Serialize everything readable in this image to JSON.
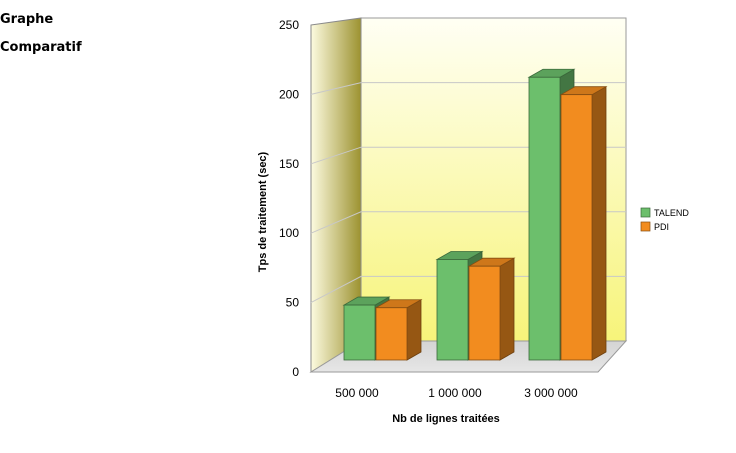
{
  "heading": {
    "line1": "Graphe",
    "line2": "Comparatif"
  },
  "chart_data": {
    "type": "bar",
    "title": "",
    "xlabel": "Nb de lignes traitées",
    "ylabel": "Tps de traitement (sec)",
    "categories": [
      "500 000",
      "1 000 000",
      "3 000 000"
    ],
    "series": [
      {
        "name": "TALEND",
        "values": [
          41,
          75,
          211
        ],
        "color": "#6cbf6c"
      },
      {
        "name": "PDI",
        "values": [
          39,
          70,
          198
        ],
        "color": "#f28c1f"
      }
    ],
    "ylim": [
      0,
      250
    ],
    "yticks": [
      0,
      50,
      100,
      150,
      200,
      250
    ],
    "grid": true,
    "legend_position": "right",
    "style": "3d"
  }
}
